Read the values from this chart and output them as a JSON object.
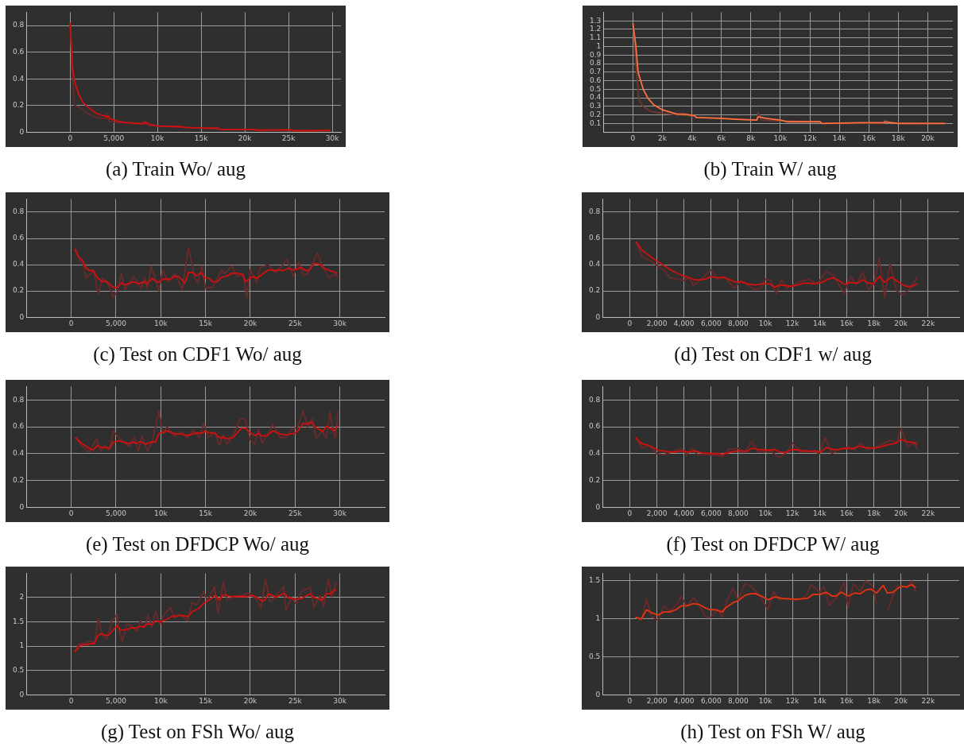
{
  "chart_data": [
    {
      "type": "line",
      "title": "(a) Train Wo/ aug",
      "marker": "none",
      "grid": true,
      "legend": false,
      "xlim": [
        -5000,
        31000
      ],
      "ylim": [
        0,
        0.9
      ],
      "xticks": [
        {
          "value": 0,
          "label": "0"
        },
        {
          "value": 5000,
          "label": "5,000"
        },
        {
          "value": 10000,
          "label": "10k"
        },
        {
          "value": 15000,
          "label": "15k"
        },
        {
          "value": 20000,
          "label": "20k"
        },
        {
          "value": 25000,
          "label": "25k"
        },
        {
          "value": 30000,
          "label": "30k"
        }
      ],
      "yticks": [
        0,
        0.2,
        0.4,
        0.6,
        0.8
      ],
      "series": [
        {
          "color": "#d40f0f",
          "x": [
            0,
            100,
            250,
            500,
            1000,
            1500,
            2000,
            3000,
            4000,
            4300,
            4400,
            4600,
            5500,
            6500,
            8500,
            8600,
            9000,
            10000,
            12800,
            13000,
            15000,
            17000,
            17100,
            21200,
            21300,
            25000,
            26000,
            29800
          ],
          "values": [
            0.82,
            0.7,
            0.5,
            0.38,
            0.28,
            0.22,
            0.19,
            0.14,
            0.12,
            0.11,
            0.12,
            0.1,
            0.08,
            0.072,
            0.062,
            0.075,
            0.06,
            0.045,
            0.04,
            0.035,
            0.03,
            0.03,
            0.02,
            0.02,
            0.012,
            0.018,
            0.01,
            0.012
          ]
        },
        {
          "color": "#6a2a2a",
          "x": [
            0,
            200,
            500,
            1000,
            2000,
            3000,
            4000,
            4200,
            4500,
            5500,
            8000,
            8500,
            9000,
            12000,
            15000,
            17000,
            21000,
            25000,
            29800
          ],
          "values": [
            0.82,
            0.5,
            0.2,
            0.19,
            0.14,
            0.11,
            0.1,
            0.14,
            0.08,
            0.07,
            0.06,
            0.08,
            0.05,
            0.04,
            0.03,
            0.02,
            0.02,
            0.01,
            0.01
          ]
        }
      ]
    },
    {
      "type": "line",
      "title": "(b) Train W/ aug",
      "marker": "none",
      "grid": true,
      "legend": false,
      "xlim": [
        -2000,
        21700
      ],
      "ylim": [
        0,
        1.4
      ],
      "xticks": [
        {
          "value": 0,
          "label": "0"
        },
        {
          "value": 2000,
          "label": "2k"
        },
        {
          "value": 4000,
          "label": "4k"
        },
        {
          "value": 6000,
          "label": "6k"
        },
        {
          "value": 8000,
          "label": "8k"
        },
        {
          "value": 10000,
          "label": "10k"
        },
        {
          "value": 12000,
          "label": "12k"
        },
        {
          "value": 14000,
          "label": "14k"
        },
        {
          "value": 16000,
          "label": "16k"
        },
        {
          "value": 18000,
          "label": "18k"
        },
        {
          "value": 20000,
          "label": "20k"
        }
      ],
      "yticks": [
        0.1,
        0.2,
        0.3,
        0.4,
        0.5,
        0.6,
        0.7,
        0.8,
        0.9,
        1,
        1.1,
        1.2,
        1.3
      ],
      "series": [
        {
          "color": "#ff7043",
          "x": [
            0,
            200,
            350,
            700,
            1000,
            1400,
            2000,
            3000,
            3500,
            4200,
            4300,
            6000,
            7000,
            8400,
            8500,
            9000,
            10000,
            10500,
            12700,
            12800,
            15500,
            17000,
            17100,
            18000,
            20000,
            21200
          ],
          "values": [
            1.27,
            1.0,
            0.7,
            0.5,
            0.4,
            0.32,
            0.26,
            0.21,
            0.21,
            0.19,
            0.17,
            0.16,
            0.15,
            0.14,
            0.18,
            0.16,
            0.14,
            0.12,
            0.12,
            0.1,
            0.11,
            0.11,
            0.12,
            0.1,
            0.1,
            0.1
          ]
        },
        {
          "color": "#6b3a2a",
          "x": [
            0,
            250,
            400,
            700,
            1200,
            2000,
            3000,
            4200,
            4300,
            8400,
            8500,
            8700,
            10000,
            12700,
            12800,
            17000,
            17100,
            17300,
            21200
          ],
          "values": [
            1.27,
            0.7,
            0.38,
            0.3,
            0.24,
            0.22,
            0.2,
            0.19,
            0.17,
            0.14,
            0.23,
            0.14,
            0.13,
            0.12,
            0.1,
            0.1,
            0.14,
            0.11,
            0.1
          ]
        }
      ]
    },
    {
      "type": "line",
      "title": "(c) Test on CDF1 Wo/ aug",
      "marker": "none",
      "grid": true,
      "legend": false,
      "xlim": [
        -5000,
        35000
      ],
      "ylim": [
        0,
        0.9
      ],
      "xticks": [
        {
          "value": 0,
          "label": "0"
        },
        {
          "value": 5000,
          "label": "5,000"
        },
        {
          "value": 10000,
          "label": "10k"
        },
        {
          "value": 15000,
          "label": "15k"
        },
        {
          "value": 20000,
          "label": "20k"
        },
        {
          "value": 25000,
          "label": "25k"
        },
        {
          "value": 30000,
          "label": "30k"
        }
      ],
      "yticks": [
        0,
        0.2,
        0.4,
        0.6,
        0.8
      ],
      "series": [
        {
          "color": "#d40f0f",
          "x": [
            400,
            800,
            1300,
            1600,
            2000,
            2500,
            2900,
            3500,
            3900,
            4400,
            4800,
            5100,
            5600,
            6000,
            6900,
            7500,
            8100,
            8500,
            9000,
            9700,
            10200,
            11100,
            11500,
            12000,
            12700,
            13100,
            13600,
            14000,
            14500,
            14900,
            15400,
            15800,
            16300,
            16700,
            17600,
            17900,
            18600,
            19100,
            19500,
            20000,
            20400,
            20700,
            21500,
            22000,
            22800,
            23200,
            23700,
            24300,
            24700,
            25300,
            25600,
            26200,
            26500,
            27200,
            27800,
            28300,
            28900,
            29700
          ],
          "values": [
            0.52,
            0.46,
            0.43,
            0.38,
            0.355,
            0.355,
            0.3,
            0.27,
            0.275,
            0.245,
            0.225,
            0.225,
            0.26,
            0.245,
            0.27,
            0.255,
            0.27,
            0.255,
            0.295,
            0.265,
            0.29,
            0.29,
            0.31,
            0.31,
            0.26,
            0.34,
            0.34,
            0.315,
            0.34,
            0.3,
            0.295,
            0.27,
            0.27,
            0.3,
            0.32,
            0.335,
            0.335,
            0.325,
            0.27,
            0.3,
            0.31,
            0.295,
            0.335,
            0.36,
            0.355,
            0.36,
            0.355,
            0.375,
            0.36,
            0.37,
            0.38,
            0.355,
            0.355,
            0.41,
            0.4,
            0.37,
            0.355,
            0.335
          ]
        },
        {
          "color": "#6a2a2a",
          "x": [
            500,
            1000,
            1300,
            1700,
            2500,
            3000,
            3500,
            4200,
            4700,
            5200,
            5600,
            6000,
            7000,
            7800,
            8200,
            8500,
            8900,
            9800,
            10200,
            10800,
            11600,
            12400,
            13100,
            13800,
            14100,
            14600,
            15000,
            15800,
            16800,
            17100,
            17900,
            18500,
            19200,
            19600,
            20000,
            20700,
            21100,
            22000,
            22800,
            23500,
            24100,
            24800,
            25400,
            25900,
            26400,
            27500,
            28000,
            28800,
            29500,
            29800
          ],
          "values": [
            0.52,
            0.42,
            0.41,
            0.3,
            0.35,
            0.18,
            0.3,
            0.24,
            0.15,
            0.2,
            0.33,
            0.21,
            0.31,
            0.22,
            0.3,
            0.22,
            0.39,
            0.2,
            0.36,
            0.27,
            0.33,
            0.21,
            0.53,
            0.3,
            0.26,
            0.39,
            0.22,
            0.23,
            0.36,
            0.33,
            0.39,
            0.31,
            0.33,
            0.15,
            0.36,
            0.26,
            0.38,
            0.4,
            0.34,
            0.39,
            0.44,
            0.31,
            0.42,
            0.32,
            0.33,
            0.49,
            0.4,
            0.3,
            0.33,
            0.3
          ]
        }
      ]
    },
    {
      "type": "line",
      "title": "(d) Test on CDF1 w/ aug",
      "marker": "none",
      "grid": true,
      "legend": false,
      "xlim": [
        -2000,
        24300
      ],
      "ylim": [
        0,
        0.9
      ],
      "xticks": [
        {
          "value": 0,
          "label": "0"
        },
        {
          "value": 2000,
          "label": "2,000"
        },
        {
          "value": 4000,
          "label": "4,000"
        },
        {
          "value": 6000,
          "label": "6,000"
        },
        {
          "value": 8000,
          "label": "8,000"
        },
        {
          "value": 10000,
          "label": "10k"
        },
        {
          "value": 12000,
          "label": "12k"
        },
        {
          "value": 14000,
          "label": "14k"
        },
        {
          "value": 16000,
          "label": "16k"
        },
        {
          "value": 18000,
          "label": "18k"
        },
        {
          "value": 20000,
          "label": "20k"
        },
        {
          "value": 22000,
          "label": "22k"
        }
      ],
      "yticks": [
        0,
        0.2,
        0.4,
        0.6,
        0.8
      ],
      "series": [
        {
          "color": "#d40f0f",
          "x": [
            470,
            900,
            1900,
            2400,
            3100,
            3800,
            4300,
            4800,
            5300,
            5700,
            6000,
            6400,
            6800,
            7300,
            7700,
            8200,
            8700,
            9200,
            9800,
            10300,
            10700,
            11100,
            11600,
            12000,
            12500,
            12900,
            13600,
            14200,
            14600,
            15000,
            15500,
            15800,
            16200,
            16800,
            17200,
            17600,
            18000,
            18400,
            18800,
            19300,
            20000,
            20400,
            20800,
            21200
          ],
          "values": [
            0.575,
            0.51,
            0.435,
            0.4,
            0.355,
            0.32,
            0.305,
            0.285,
            0.285,
            0.295,
            0.31,
            0.3,
            0.305,
            0.29,
            0.27,
            0.27,
            0.255,
            0.245,
            0.255,
            0.255,
            0.23,
            0.245,
            0.24,
            0.235,
            0.25,
            0.26,
            0.255,
            0.265,
            0.29,
            0.3,
            0.275,
            0.25,
            0.265,
            0.26,
            0.285,
            0.26,
            0.255,
            0.31,
            0.265,
            0.305,
            0.255,
            0.235,
            0.235,
            0.255
          ]
        },
        {
          "color": "#6a2a2a",
          "x": [
            470,
            900,
            1500,
            2500,
            3000,
            4000,
            4400,
            4700,
            6000,
            6500,
            7000,
            7700,
            8200,
            9200,
            9700,
            10000,
            10400,
            10800,
            11200,
            11600,
            12500,
            13200,
            13800,
            14500,
            15000,
            15600,
            15800,
            16300,
            16700,
            17200,
            17600,
            18000,
            18400,
            18800,
            19200,
            19700,
            20100,
            20700,
            21200
          ],
          "values": [
            0.575,
            0.46,
            0.43,
            0.36,
            0.3,
            0.28,
            0.3,
            0.24,
            0.36,
            0.29,
            0.31,
            0.22,
            0.28,
            0.21,
            0.22,
            0.29,
            0.28,
            0.18,
            0.29,
            0.22,
            0.27,
            0.29,
            0.25,
            0.35,
            0.32,
            0.22,
            0.18,
            0.31,
            0.25,
            0.34,
            0.21,
            0.25,
            0.45,
            0.15,
            0.41,
            0.2,
            0.17,
            0.22,
            0.31
          ]
        }
      ]
    },
    {
      "type": "line",
      "title": "(e) Test on DFDCP Wo/ aug",
      "marker": "none",
      "grid": true,
      "legend": false,
      "xlim": [
        -5000,
        35000
      ],
      "ylim": [
        0,
        0.9
      ],
      "xticks": [
        {
          "value": 0,
          "label": "0"
        },
        {
          "value": 5000,
          "label": "5,000"
        },
        {
          "value": 10000,
          "label": "10k"
        },
        {
          "value": 15000,
          "label": "15k"
        },
        {
          "value": 20000,
          "label": "20k"
        },
        {
          "value": 25000,
          "label": "25k"
        },
        {
          "value": 30000,
          "label": "30k"
        }
      ],
      "yticks": [
        0,
        0.2,
        0.4,
        0.6,
        0.8
      ],
      "series": [
        {
          "color": "#d40f0f",
          "x": [
            470,
            1000,
            1750,
            2200,
            2500,
            2900,
            3400,
            3900,
            4200,
            4700,
            5300,
            5800,
            6400,
            6900,
            7300,
            7700,
            8300,
            8900,
            9400,
            9800,
            10200,
            10700,
            11400,
            12300,
            12900,
            13500,
            14000,
            14500,
            14900,
            15500,
            16100,
            16500,
            16900,
            17500,
            18100,
            19000,
            19400,
            20000,
            20500,
            20900,
            21300,
            21900,
            22500,
            23400,
            24100,
            24900,
            25400,
            25900,
            26300,
            26800,
            27200,
            28100,
            28500,
            29400,
            29700
          ],
          "values": [
            0.52,
            0.485,
            0.45,
            0.43,
            0.43,
            0.46,
            0.445,
            0.445,
            0.435,
            0.485,
            0.495,
            0.485,
            0.475,
            0.485,
            0.475,
            0.49,
            0.47,
            0.485,
            0.485,
            0.55,
            0.555,
            0.57,
            0.55,
            0.545,
            0.535,
            0.545,
            0.555,
            0.55,
            0.565,
            0.555,
            0.55,
            0.52,
            0.52,
            0.51,
            0.52,
            0.59,
            0.59,
            0.555,
            0.535,
            0.55,
            0.53,
            0.535,
            0.57,
            0.545,
            0.54,
            0.55,
            0.575,
            0.625,
            0.62,
            0.635,
            0.6,
            0.565,
            0.605,
            0.57,
            0.61
          ]
        },
        {
          "color": "#6a2a2a",
          "x": [
            470,
            1000,
            2000,
            2800,
            3300,
            3800,
            4300,
            4700,
            5300,
            6000,
            6500,
            7000,
            7500,
            7900,
            8500,
            9000,
            9800,
            10200,
            10700,
            11500,
            12300,
            13000,
            13600,
            14300,
            14800,
            15300,
            16100,
            16500,
            17000,
            17400,
            18200,
            18900,
            19400,
            20000,
            20500,
            20900,
            21300,
            22000,
            22500,
            23300,
            24000,
            24600,
            25300,
            25900,
            26400,
            26900,
            27400,
            28000,
            28500,
            28900,
            29300,
            29500,
            29800
          ],
          "values": [
            0.52,
            0.47,
            0.41,
            0.51,
            0.42,
            0.46,
            0.43,
            0.57,
            0.52,
            0.48,
            0.45,
            0.52,
            0.42,
            0.53,
            0.42,
            0.48,
            0.72,
            0.55,
            0.6,
            0.53,
            0.56,
            0.52,
            0.57,
            0.52,
            0.63,
            0.52,
            0.56,
            0.46,
            0.54,
            0.47,
            0.55,
            0.66,
            0.66,
            0.5,
            0.47,
            0.58,
            0.48,
            0.55,
            0.62,
            0.52,
            0.52,
            0.58,
            0.6,
            0.72,
            0.6,
            0.66,
            0.51,
            0.57,
            0.51,
            0.71,
            0.55,
            0.52,
            0.72
          ]
        }
      ]
    },
    {
      "type": "line",
      "title": "(f) Test on DFDCP W/ aug",
      "marker": "none",
      "grid": true,
      "legend": false,
      "xlim": [
        -2000,
        24300
      ],
      "ylim": [
        0,
        0.9
      ],
      "xticks": [
        {
          "value": 0,
          "label": "0"
        },
        {
          "value": 2000,
          "label": "2,000"
        },
        {
          "value": 4000,
          "label": "4,000"
        },
        {
          "value": 6000,
          "label": "6,000"
        },
        {
          "value": 8000,
          "label": "8,000"
        },
        {
          "value": 10000,
          "label": "10k"
        },
        {
          "value": 12000,
          "label": "12k"
        },
        {
          "value": 14000,
          "label": "14k"
        },
        {
          "value": 16000,
          "label": "16k"
        },
        {
          "value": 18000,
          "label": "18k"
        },
        {
          "value": 20000,
          "label": "20k"
        },
        {
          "value": 22000,
          "label": "22k"
        }
      ],
      "yticks": [
        0,
        0.2,
        0.4,
        0.6,
        0.8
      ],
      "series": [
        {
          "color": "#d40f0f",
          "x": [
            440,
            860,
            1300,
            1700,
            2100,
            2700,
            3200,
            3900,
            4300,
            4800,
            5300,
            6000,
            6500,
            6900,
            7400,
            8000,
            8600,
            9000,
            9500,
            10100,
            10700,
            11100,
            11500,
            12000,
            12600,
            13300,
            13700,
            14100,
            14500,
            15000,
            15400,
            16000,
            16400,
            16900,
            17300,
            17900,
            18500,
            19200,
            19600,
            20000,
            20500,
            20900,
            21200
          ],
          "values": [
            0.52,
            0.475,
            0.465,
            0.445,
            0.425,
            0.415,
            0.41,
            0.42,
            0.41,
            0.42,
            0.405,
            0.4,
            0.4,
            0.395,
            0.41,
            0.42,
            0.415,
            0.44,
            0.43,
            0.425,
            0.43,
            0.41,
            0.41,
            0.43,
            0.425,
            0.415,
            0.42,
            0.41,
            0.445,
            0.43,
            0.43,
            0.44,
            0.435,
            0.455,
            0.445,
            0.44,
            0.45,
            0.47,
            0.475,
            0.505,
            0.485,
            0.485,
            0.47
          ]
        },
        {
          "color": "#6a2a2a",
          "x": [
            440,
            900,
            1400,
            2000,
            2500,
            3000,
            3800,
            4200,
            4600,
            5000,
            6000,
            6800,
            7300,
            8000,
            8500,
            9000,
            9500,
            10400,
            11000,
            11600,
            12000,
            12600,
            13400,
            14000,
            14400,
            14900,
            15600,
            16200,
            16600,
            17000,
            17500,
            18200,
            19200,
            19700,
            20000,
            20500,
            21000,
            21200
          ],
          "values": [
            0.52,
            0.44,
            0.46,
            0.4,
            0.39,
            0.41,
            0.44,
            0.39,
            0.44,
            0.39,
            0.39,
            0.38,
            0.43,
            0.44,
            0.41,
            0.49,
            0.41,
            0.42,
            0.37,
            0.41,
            0.48,
            0.41,
            0.42,
            0.4,
            0.52,
            0.4,
            0.44,
            0.45,
            0.43,
            0.48,
            0.43,
            0.45,
            0.5,
            0.48,
            0.59,
            0.45,
            0.48,
            0.43
          ]
        }
      ]
    },
    {
      "type": "line",
      "title": "(g) Test on FSh Wo/ aug",
      "marker": "none",
      "grid": true,
      "legend": false,
      "xlim": [
        -5000,
        35000
      ],
      "ylim": [
        0,
        2.5
      ],
      "xticks": [
        {
          "value": 0,
          "label": "0"
        },
        {
          "value": 5000,
          "label": "5,000"
        },
        {
          "value": 10000,
          "label": "10k"
        },
        {
          "value": 15000,
          "label": "15k"
        },
        {
          "value": 20000,
          "label": "20k"
        },
        {
          "value": 25000,
          "label": "25k"
        },
        {
          "value": 30000,
          "label": "30k"
        }
      ],
      "yticks": [
        0,
        0.5,
        1,
        1.5,
        2
      ],
      "series": [
        {
          "color": "#d40f0f",
          "x": [
            400,
            1000,
            1600,
            2200,
            2600,
            2900,
            3300,
            3800,
            4200,
            5100,
            5500,
            6200,
            6800,
            7200,
            7700,
            8100,
            8500,
            9000,
            9400,
            10000,
            10600,
            11200,
            11700,
            12500,
            13000,
            13600,
            14200,
            14800,
            15500,
            16100,
            16500,
            17000,
            17800,
            18700,
            19700,
            20200,
            20800,
            21300,
            21600,
            22000,
            22900,
            23800,
            24200,
            24800,
            25100,
            25700,
            26700,
            27100,
            27600,
            28000,
            28500,
            28900,
            29600
          ],
          "values": [
            0.88,
            1.02,
            1.03,
            1.05,
            1.05,
            1.2,
            1.26,
            1.22,
            1.23,
            1.42,
            1.33,
            1.34,
            1.38,
            1.37,
            1.41,
            1.39,
            1.46,
            1.45,
            1.52,
            1.5,
            1.55,
            1.61,
            1.63,
            1.63,
            1.61,
            1.72,
            1.77,
            1.88,
            1.96,
            2.05,
            1.95,
            2.06,
            2.02,
            2.02,
            2.02,
            2.05,
            2.0,
            1.93,
            1.94,
            2.08,
            2.01,
            2.09,
            2.0,
            1.98,
            1.96,
            1.98,
            2.08,
            2.0,
            1.98,
            1.94,
            2.08,
            2.08,
            2.17
          ]
        },
        {
          "color": "#6a2a2a",
          "x": [
            400,
            900,
            1500,
            2200,
            2600,
            3000,
            3500,
            4000,
            4500,
            5100,
            5400,
            5700,
            6200,
            6700,
            7300,
            7700,
            8200,
            8600,
            9000,
            9400,
            9900,
            10300,
            11100,
            11500,
            12200,
            13000,
            13500,
            14000,
            14800,
            15200,
            16000,
            16400,
            17000,
            17400,
            18200,
            19200,
            19800,
            20600,
            21200,
            21700,
            22200,
            22700,
            23700,
            24000,
            24600,
            25100,
            25800,
            26700,
            27100,
            27800,
            28200,
            28700,
            29100,
            29500,
            29700
          ],
          "values": [
            0.88,
            1.05,
            1.07,
            1.1,
            1.05,
            1.56,
            1.22,
            1.15,
            1.5,
            1.65,
            1.3,
            1.1,
            1.45,
            1.42,
            1.3,
            1.52,
            1.38,
            1.64,
            1.39,
            1.72,
            1.45,
            1.63,
            1.8,
            1.58,
            1.66,
            1.52,
            1.9,
            1.85,
            2.12,
            1.95,
            2.22,
            1.68,
            2.33,
            1.95,
            2.02,
            2.05,
            2.1,
            1.98,
            1.78,
            2.38,
            1.92,
            2.0,
            2.23,
            1.74,
            2.0,
            1.87,
            2.15,
            2.2,
            1.8,
            2.05,
            1.81,
            2.38,
            2.02,
            2.28,
            2.3
          ]
        }
      ]
    },
    {
      "type": "line",
      "title": "(h) Test on FSh W/ aug",
      "marker": "none",
      "grid": true,
      "legend": false,
      "xlim": [
        -2000,
        24300
      ],
      "ylim": [
        0,
        1.6
      ],
      "xticks": [
        {
          "value": 0,
          "label": "0"
        },
        {
          "value": 2000,
          "label": "2,000"
        },
        {
          "value": 4000,
          "label": "4,000"
        },
        {
          "value": 6000,
          "label": "6,000"
        },
        {
          "value": 8000,
          "label": "8,000"
        },
        {
          "value": 10000,
          "label": "10k"
        },
        {
          "value": 12000,
          "label": "12k"
        },
        {
          "value": 14000,
          "label": "14k"
        },
        {
          "value": 16000,
          "label": "16k"
        },
        {
          "value": 18000,
          "label": "18k"
        },
        {
          "value": 20000,
          "label": "20k"
        },
        {
          "value": 22000,
          "label": "22k"
        }
      ],
      "yticks": [
        0,
        0.5,
        1,
        1.5
      ],
      "series": [
        {
          "color": "#e8330f",
          "x": [
            420,
            860,
            1240,
            1600,
            2100,
            2500,
            2950,
            3400,
            3800,
            4200,
            4700,
            5100,
            5500,
            5900,
            6300,
            6800,
            7100,
            7600,
            8000,
            8500,
            8900,
            9300,
            9700,
            10200,
            10700,
            11200,
            11900,
            12500,
            13100,
            13500,
            14000,
            14500,
            14900,
            15200,
            15600,
            16100,
            16600,
            17000,
            17400,
            17800,
            18200,
            18700,
            19000,
            19400,
            20000,
            20400,
            20800,
            21100
          ],
          "values": [
            1.02,
            1.0,
            1.12,
            1.08,
            1.05,
            1.09,
            1.09,
            1.12,
            1.17,
            1.17,
            1.2,
            1.19,
            1.15,
            1.12,
            1.12,
            1.09,
            1.15,
            1.21,
            1.24,
            1.31,
            1.33,
            1.33,
            1.3,
            1.25,
            1.29,
            1.27,
            1.26,
            1.26,
            1.27,
            1.32,
            1.32,
            1.35,
            1.3,
            1.3,
            1.35,
            1.3,
            1.34,
            1.33,
            1.38,
            1.39,
            1.34,
            1.44,
            1.34,
            1.35,
            1.43,
            1.42,
            1.45,
            1.41
          ]
        },
        {
          "color": "#6a2a2a",
          "x": [
            420,
            860,
            1240,
            1600,
            2100,
            2500,
            2950,
            3500,
            3800,
            4200,
            4700,
            5100,
            5600,
            6000,
            6500,
            6800,
            7200,
            7600,
            8000,
            8500,
            9000,
            9600,
            10200,
            10600,
            11000,
            11700,
            12300,
            13000,
            13400,
            14000,
            14300,
            14700,
            15300,
            15800,
            16100,
            16500,
            17000,
            17400,
            17900,
            18200,
            18500,
            19000,
            19400,
            19800,
            20000,
            20400,
            20800,
            21100
          ],
          "values": [
            1.02,
            0.98,
            1.26,
            1.03,
            0.98,
            1.17,
            1.1,
            1.2,
            1.3,
            1.16,
            1.28,
            1.18,
            1.03,
            1.02,
            1.13,
            1.02,
            1.25,
            1.4,
            1.25,
            1.47,
            1.42,
            1.3,
            1.12,
            1.36,
            1.25,
            1.27,
            1.24,
            1.3,
            1.45,
            1.35,
            1.43,
            1.18,
            1.29,
            1.48,
            1.15,
            1.46,
            1.36,
            1.5,
            1.44,
            1.2,
            null,
            1.1,
            1.3,
            1.45,
            null,
            1.4,
            1.5,
            1.35
          ]
        }
      ]
    }
  ]
}
